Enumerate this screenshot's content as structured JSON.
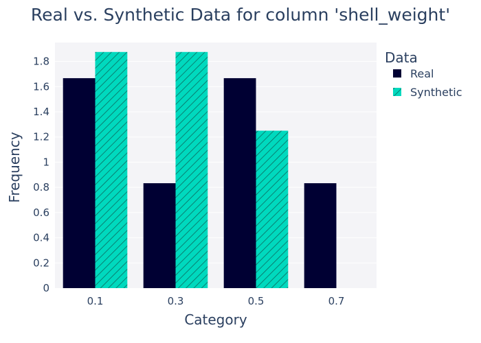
{
  "chart_data": {
    "type": "bar",
    "title": "Real vs. Synthetic Data for column 'shell_weight'",
    "xlabel": "Category",
    "ylabel": "Frequency",
    "categories": [
      "0.1",
      "0.3",
      "0.5",
      "0.7"
    ],
    "ylim": [
      0,
      1.95
    ],
    "yticks": [
      "0",
      "0.2",
      "0.4",
      "0.6",
      "0.8",
      "1",
      "1.2",
      "1.4",
      "1.6",
      "1.8"
    ],
    "grid": true,
    "legend_title": "Data",
    "legend_position": "top-right",
    "series": [
      {
        "name": "Real",
        "values": [
          1.667,
          0.833,
          1.667,
          0.833
        ],
        "color": "#000033",
        "pattern": "solid"
      },
      {
        "name": "Synthetic",
        "values": [
          1.875,
          1.875,
          1.25,
          0
        ],
        "color": "#00d9be",
        "pattern": "diagonal-hatch"
      }
    ],
    "plot_background": "#f4f4f7"
  }
}
